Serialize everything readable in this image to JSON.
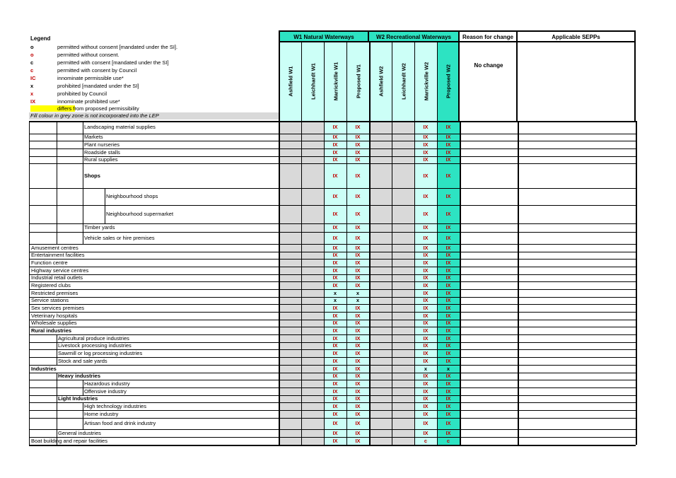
{
  "legend": {
    "title": "Legend",
    "items": [
      {
        "symbol": "o",
        "color": "#000000",
        "text": "permitted without consent [mandated under the SI]."
      },
      {
        "symbol": "o",
        "color": "#c00000",
        "text": "permitted without consent."
      },
      {
        "symbol": "c",
        "color": "#000000",
        "text": "permitted with consent [mandated under the SI]"
      },
      {
        "symbol": "c",
        "color": "#c00000",
        "text": "permitted with consent by Council"
      },
      {
        "symbol": "IC",
        "color": "#c00000",
        "text": "innominate permissible use*"
      },
      {
        "symbol": "x",
        "color": "#000000",
        "text": "prohibited [mandated under the SI]"
      },
      {
        "symbol": "x",
        "color": "#c00000",
        "text": "prohibited by Council"
      },
      {
        "symbol": "IX",
        "color": "#c00000",
        "text": "innominate prohibited use*"
      }
    ],
    "swatch_text": "differs from proposed permissibility",
    "note": "Fill colour in grey  zone is not incorporated into the LEP"
  },
  "header": {
    "w1_group": "W1 Natural Waterways",
    "w2_group": "W2 Recreational Waterways",
    "reason": "Reason for change",
    "sepps": "Applicable SEPPs",
    "columns": [
      "Ashfield W1",
      "Leichhardt W1",
      "Marrickville W1",
      "Proposed W1",
      "Ashfield W2",
      "Leichhardt W2",
      "Marrickville W2",
      "Proposed W2"
    ],
    "reason_value": "No change"
  },
  "rows": [
    {
      "label": "Landscaping material supplies",
      "v": [
        "IX",
        "IX",
        "IX",
        "IX"
      ]
    },
    {
      "label": "Markets",
      "v": [
        "IX",
        "IX",
        "IX",
        "IX"
      ]
    },
    {
      "label": "Plant nurseries",
      "v": [
        "IX",
        "IX",
        "IX",
        "IX"
      ]
    },
    {
      "label": "Roadside stalls",
      "v": [
        "IX",
        "IX",
        "IX",
        "IX"
      ]
    },
    {
      "label": "Rural supplies",
      "v": [
        "IX",
        "IX",
        "IX",
        "IX"
      ]
    },
    {
      "label": "Shops",
      "v": [
        "IX",
        "IX",
        "IX",
        "IX"
      ]
    },
    {
      "label": "Neighbourhood shops",
      "v": [
        "IX",
        "IX",
        "IX",
        "IX"
      ]
    },
    {
      "label": "Neighbourhood supermarket",
      "v": [
        "IX",
        "IX",
        "IX",
        "IX"
      ]
    },
    {
      "label": "Timber yards",
      "v": [
        "IX",
        "IX",
        "IX",
        "IX"
      ]
    },
    {
      "label": "Vehicle sales or hire premises",
      "v": [
        "IX",
        "IX",
        "IX",
        "IX"
      ]
    },
    {
      "label": "Amusement centres",
      "v": [
        "IX",
        "IX",
        "IX",
        "IX"
      ]
    },
    {
      "label": "Entertainment facilities",
      "v": [
        "IX",
        "IX",
        "IX",
        "IX"
      ]
    },
    {
      "label": "Function centre",
      "v": [
        "IX",
        "IX",
        "IX",
        "IX"
      ]
    },
    {
      "label": "Highway service centres",
      "v": [
        "IX",
        "IX",
        "IX",
        "IX"
      ]
    },
    {
      "label": "Industrial retail outlets",
      "v": [
        "IX",
        "IX",
        "IX",
        "IX"
      ]
    },
    {
      "label": "Registered clubs",
      "v": [
        "IX",
        "IX",
        "IX",
        "IX"
      ]
    },
    {
      "label": "Restricted premises",
      "v": [
        "x",
        "x",
        "IX",
        "IX"
      ]
    },
    {
      "label": "Service stations",
      "v": [
        "x",
        "x",
        "IX",
        "IX"
      ]
    },
    {
      "label": "Sex services premises",
      "v": [
        "IX",
        "IX",
        "IX",
        "IX"
      ]
    },
    {
      "label": "Veterinary hospitals",
      "v": [
        "IX",
        "IX",
        "IX",
        "IX"
      ]
    },
    {
      "label": "Wholesale supplies",
      "v": [
        "IX",
        "IX",
        "IX",
        "IX"
      ]
    },
    {
      "label": "Rural industries",
      "v": [
        "IX",
        "IX",
        "IX",
        "IX"
      ]
    },
    {
      "label": "Agricultural produce industries",
      "v": [
        "IX",
        "IX",
        "IX",
        "IX"
      ]
    },
    {
      "label": "Livestock processing industries",
      "v": [
        "IX",
        "IX",
        "IX",
        "IX"
      ]
    },
    {
      "label": "Sawmill or log processing industries",
      "v": [
        "IX",
        "IX",
        "IX",
        "IX"
      ]
    },
    {
      "label": "Stock and sale yards",
      "v": [
        "IX",
        "IX",
        "IX",
        "IX"
      ]
    },
    {
      "label": "Industries",
      "v": [
        "IX",
        "IX",
        "x",
        "x"
      ]
    },
    {
      "label": "Heavy industries",
      "v": [
        "IX",
        "IX",
        "IX",
        "IX"
      ]
    },
    {
      "label": "Hazardous industry",
      "v": [
        "IX",
        "IX",
        "IX",
        "IX"
      ]
    },
    {
      "label": "Offensive industry",
      "v": [
        "IX",
        "IX",
        "IX",
        "IX"
      ]
    },
    {
      "label": "Light Industries",
      "v": [
        "IX",
        "IX",
        "IX",
        "IX"
      ]
    },
    {
      "label": "High technology industries",
      "v": [
        "IX",
        "IX",
        "IX",
        "IX"
      ]
    },
    {
      "label": "Home industry",
      "v": [
        "IX",
        "IX",
        "IX",
        "IX"
      ]
    },
    {
      "label": "Artisan food and drink industry",
      "v": [
        "IX",
        "IX",
        "IX",
        "IX"
      ]
    },
    {
      "label": "General industries",
      "v": [
        "IX",
        "IX",
        "IX",
        "IX"
      ]
    },
    {
      "label": "Boat building and repair facilities",
      "v": [
        "IX",
        "IX",
        "c",
        "c"
      ]
    }
  ]
}
